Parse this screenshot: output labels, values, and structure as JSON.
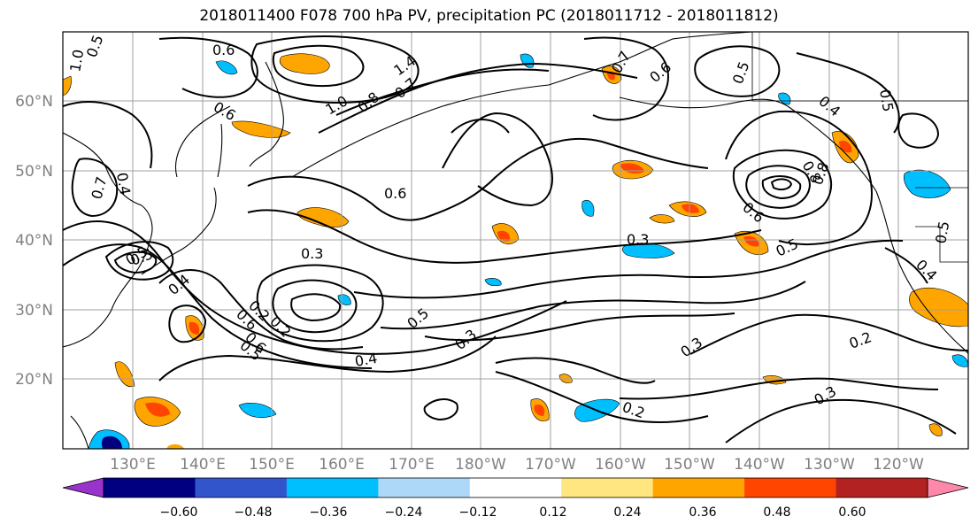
{
  "title": "2018011400 F078 700 hPa PV, precipitation PC (2018011712 - 2018011812)",
  "lat_labels": [
    "60°N",
    "50°N",
    "40°N",
    "30°N",
    "20°N"
  ],
  "lon_labels": [
    "130°E",
    "140°E",
    "150°E",
    "160°E",
    "170°E",
    "180°W",
    "170°W",
    "160°W",
    "150°W",
    "140°W",
    "130°W",
    "120°W"
  ],
  "colorbar": {
    "ticks": [
      "−0.60",
      "−0.48",
      "−0.36",
      "−0.24",
      "−0.12",
      "0.12",
      "0.24",
      "0.36",
      "0.48",
      "0.60"
    ],
    "colors": [
      "#9933cc",
      "#000080",
      "#3355cc",
      "#00bfff",
      "#add8f7",
      "#ffffff",
      "#ffe680",
      "#ffa500",
      "#ff4500",
      "#b22222",
      "#ff88aa"
    ]
  },
  "contour_labels": [
    "0.5",
    "0.6",
    "1.0",
    "0.6",
    "1.4",
    "0.8",
    "0.7",
    "1.0",
    "0.7",
    "0.4",
    "0.5",
    "0.7",
    "0.3",
    "0.6",
    "0.5",
    "0.4",
    "0.6",
    "0.6",
    "0.3",
    "0.5",
    "0.2",
    "0.3",
    "0.5",
    "0.2",
    "0.5",
    "0.3",
    "0.6",
    "0.6",
    "0.2",
    "0.4",
    "0.2",
    "0.4",
    "0.3",
    "0.5",
    "0.5",
    "0.8",
    "0.8",
    "0.4",
    "0.5"
  ]
}
